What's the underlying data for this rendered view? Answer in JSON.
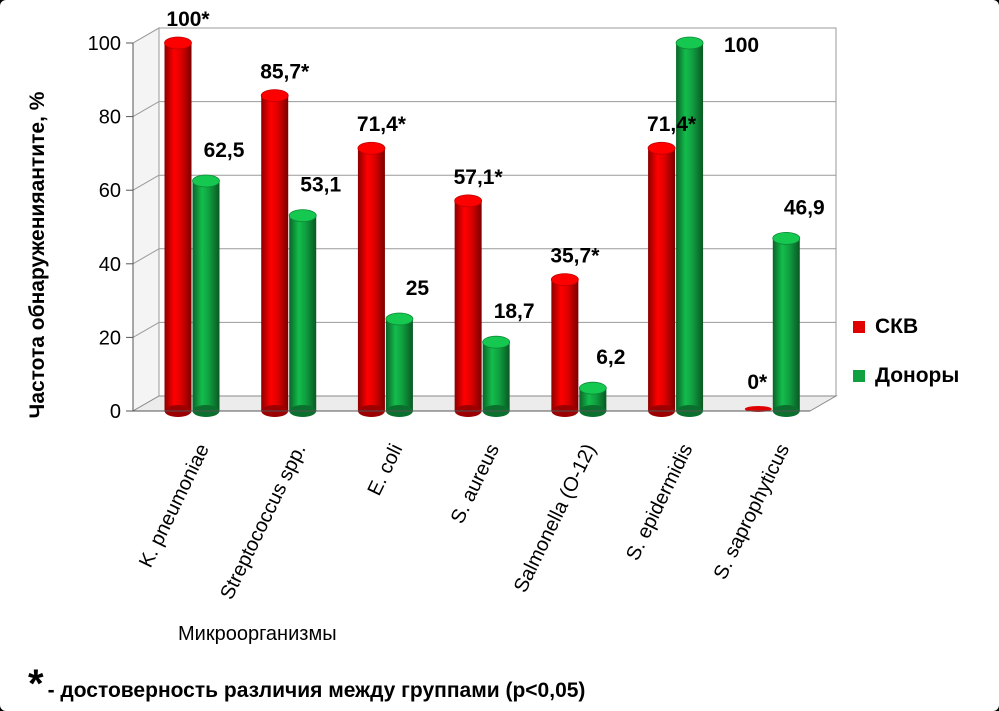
{
  "chart_data": {
    "type": "bar",
    "categories": [
      "K. pneumoniae",
      "Streptococcus spp.",
      "E. coli",
      "S. aureus",
      "Salmonella (O-12)",
      "S. epidermidis",
      "S. saprophyticus"
    ],
    "series": [
      {
        "name": "СКВ",
        "color": "#e00000",
        "values": [
          100,
          85.7,
          71.4,
          57.1,
          35.7,
          71.4,
          0
        ],
        "labels": [
          "100*",
          "85,7*",
          "71,4*",
          "57,1*",
          "35,7*",
          "71,4*",
          "0*"
        ]
      },
      {
        "name": "Доноры",
        "color": "#10a040",
        "values": [
          62.5,
          53.1,
          25,
          18.7,
          6.2,
          100,
          46.9
        ],
        "labels": [
          "62,5",
          "53,1",
          "25",
          "18,7",
          "6,2",
          "100",
          "46,9"
        ]
      }
    ],
    "yticks": [
      "0",
      "20",
      "40",
      "60",
      "80",
      "100"
    ],
    "ylim": [
      0,
      100
    ],
    "xlabel": "Микроорганизмы",
    "ylabel": "Частота обнаруженияантите, %",
    "legend_position": "right",
    "grid": true
  },
  "footnote": {
    "star": "*",
    "text": "- достоверность различия между группами (p<0,05)"
  }
}
